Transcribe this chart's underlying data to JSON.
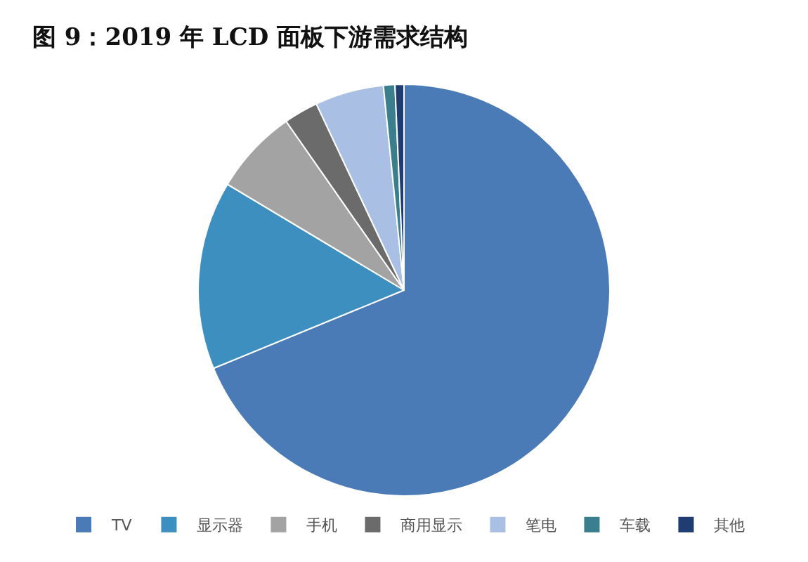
{
  "chart_data": {
    "type": "pie",
    "title": "图 9：2019 年 LCD 面板下游需求结构",
    "categories": [
      "TV",
      "显示器",
      "手机",
      "商用显示",
      "笔电",
      "车载",
      "其他"
    ],
    "values": [
      68.8,
      14.8,
      6.7,
      2.7,
      5.4,
      0.9,
      0.7
    ],
    "colors": [
      "#4a7bb7",
      "#3d8fc0",
      "#a3a3a3",
      "#6b6b6b",
      "#a9bfe3",
      "#3b7f8e",
      "#1f3d70"
    ],
    "legend": "bottom"
  }
}
